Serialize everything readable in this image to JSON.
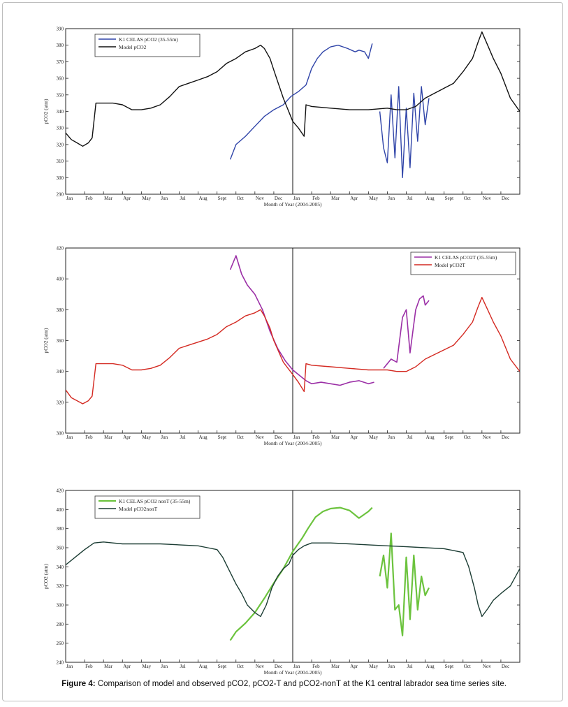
{
  "caption": {
    "label": "Figure 4:",
    "text": "Comparison of model and observed pCO2, pCO2-T and pCO2-nonT at the K1 central labrador sea time series site."
  },
  "chart_data": [
    {
      "type": "line",
      "xlabel": "Month of Year (2004-2005)",
      "ylabel": "pCO2 (atm)",
      "ylim": [
        290,
        390
      ],
      "yticks": [
        290,
        300,
        310,
        320,
        330,
        340,
        350,
        360,
        370,
        380,
        390
      ],
      "xticks": [
        "Jan",
        "Feb",
        "Mar",
        "Apr",
        "May",
        "Jun",
        "Jul",
        "Aug",
        "Sept",
        "Oct",
        "Nov",
        "Dec",
        "Jan",
        "Feb",
        "Mar",
        "Apr",
        "May",
        "Jun",
        "Jul",
        "Aug",
        "Sept",
        "Oct",
        "Nov",
        "Dec"
      ],
      "x_unit": "months since Jan 2004",
      "divider_x": 12,
      "legend_position": "top-left",
      "series": [
        {
          "name": "K1 CELAS pCO2 (35-55m)",
          "color": "#2f44a8",
          "width": 1.4,
          "x": [
            8.7,
            9.0,
            9.5,
            10.0,
            10.5,
            11.0,
            11.5,
            11.9,
            12.3,
            12.7,
            13.0,
            13.3,
            13.6,
            14.0,
            14.4,
            14.9,
            15.3,
            15.5,
            15.8,
            16.0,
            16.2
          ],
          "y": [
            311,
            320,
            325,
            331,
            337,
            341,
            344,
            349,
            352,
            356,
            366,
            372,
            376,
            379,
            380,
            378,
            376,
            377,
            376,
            372,
            381
          ]
        },
        {
          "name": "",
          "color": "#2f44a8",
          "width": 1.4,
          "x": [
            16.6,
            16.8,
            17.0,
            17.2,
            17.4,
            17.6,
            17.8,
            18.0,
            18.2,
            18.4,
            18.6,
            18.8,
            19.0,
            19.2
          ],
          "y": [
            340,
            318,
            309,
            350,
            312,
            355,
            300,
            342,
            306,
            351,
            322,
            355,
            332,
            348
          ]
        },
        {
          "name": "Model pCO2",
          "color": "#111111",
          "width": 1.4,
          "x": [
            0,
            0.3,
            0.6,
            0.9,
            1.2,
            1.4,
            1.6,
            2.0,
            2.5,
            3.0,
            3.5,
            4.0,
            4.5,
            5.0,
            5.5,
            6.0,
            6.5,
            7.0,
            7.5,
            8.0,
            8.5,
            9.0,
            9.5,
            10.0,
            10.3,
            10.5,
            10.8,
            11.0,
            11.5,
            12.0,
            12.3,
            12.6,
            12.7,
            13.0,
            14.0,
            15.0,
            16.0,
            17.0,
            17.5,
            18.0,
            18.5,
            19.0,
            19.5,
            20.0,
            20.5,
            21.0,
            21.5,
            21.8,
            22.0,
            22.3,
            22.6,
            23.0,
            23.5,
            24.0
          ],
          "y": [
            327,
            323,
            321,
            319,
            321,
            324,
            345,
            345,
            345,
            344,
            341,
            341,
            342,
            344,
            349,
            355,
            357,
            359,
            361,
            364,
            369,
            372,
            376,
            378,
            380,
            378,
            372,
            365,
            348,
            334,
            330,
            325,
            344,
            343,
            342,
            341,
            341,
            342,
            341,
            341,
            343,
            348,
            351,
            354,
            357,
            364,
            372,
            382,
            388,
            380,
            372,
            363,
            348,
            340
          ]
        }
      ]
    },
    {
      "type": "line",
      "xlabel": "Month of Year (2004-2005)",
      "ylabel": "pCO2 (atm)",
      "ylim": [
        300,
        420
      ],
      "yticks": [
        300,
        320,
        340,
        360,
        380,
        400,
        420
      ],
      "xticks": [
        "Jan",
        "Feb",
        "Mar",
        "Apr",
        "May",
        "Jun",
        "Jul",
        "Aug",
        "Sept",
        "Oct",
        "Nov",
        "Dec",
        "Jan",
        "Feb",
        "Mar",
        "Apr",
        "May",
        "Jun",
        "Jul",
        "Aug",
        "Sept",
        "Oct",
        "Nov",
        "Dec"
      ],
      "x_unit": "months since Jan 2004",
      "divider_x": 12,
      "legend_position": "top-right",
      "series": [
        {
          "name": "K1 CELAS pCO2T (35-55m)",
          "color": "#9b2fa6",
          "width": 1.6,
          "x": [
            8.7,
            9.0,
            9.3,
            9.6,
            10.0,
            10.4,
            10.8,
            11.2,
            11.6,
            12.0,
            12.4,
            12.7,
            13.0,
            13.5,
            14.0,
            14.5,
            15.0,
            15.5,
            16.0,
            16.3
          ],
          "y": [
            406,
            415,
            403,
            396,
            390,
            380,
            366,
            355,
            347,
            341,
            337,
            334,
            332,
            333,
            332,
            331,
            333,
            334,
            332,
            333
          ]
        },
        {
          "name": "",
          "color": "#9b2fa6",
          "width": 1.6,
          "x": [
            16.8,
            17.2,
            17.5,
            17.8,
            18.0,
            18.2,
            18.5,
            18.7,
            18.9,
            19.0,
            19.2
          ],
          "y": [
            342,
            348,
            346,
            375,
            380,
            352,
            380,
            387,
            389,
            383,
            386
          ]
        },
        {
          "name": "Model pCO2T",
          "color": "#d42a22",
          "width": 1.4,
          "x": [
            0,
            0.3,
            0.6,
            0.9,
            1.2,
            1.4,
            1.6,
            2.0,
            2.5,
            3.0,
            3.5,
            4.0,
            4.5,
            5.0,
            5.5,
            6.0,
            6.5,
            7.0,
            7.5,
            8.0,
            8.5,
            9.0,
            9.5,
            10.0,
            10.3,
            10.5,
            10.8,
            11.0,
            11.5,
            12.0,
            12.3,
            12.6,
            12.7,
            13.0,
            14.0,
            15.0,
            16.0,
            17.0,
            17.5,
            18.0,
            18.5,
            19.0,
            19.5,
            20.0,
            20.5,
            21.0,
            21.5,
            21.8,
            22.0,
            22.3,
            22.6,
            23.0,
            23.5,
            24.0
          ],
          "y": [
            328,
            323,
            321,
            319,
            321,
            324,
            345,
            345,
            345,
            344,
            341,
            341,
            342,
            344,
            349,
            355,
            357,
            359,
            361,
            364,
            369,
            372,
            376,
            378,
            380,
            376,
            368,
            360,
            346,
            338,
            333,
            327,
            345,
            344,
            343,
            342,
            341,
            341,
            340,
            340,
            343,
            348,
            351,
            354,
            357,
            364,
            372,
            382,
            388,
            380,
            372,
            363,
            348,
            340
          ]
        }
      ]
    },
    {
      "type": "line",
      "xlabel": "Month of Year (2004-2005)",
      "ylabel": "pCO2 (atm)",
      "ylim": [
        240,
        420
      ],
      "yticks": [
        240,
        260,
        280,
        300,
        320,
        340,
        360,
        380,
        400,
        420
      ],
      "xticks": [
        "Jan",
        "Feb",
        "Mar",
        "Apr",
        "May",
        "Jun",
        "Jul",
        "Aug",
        "Sept",
        "Oct",
        "Nov",
        "Dec",
        "Jan",
        "Feb",
        "Mar",
        "Apr",
        "May",
        "Jun",
        "Jul",
        "Aug",
        "Sept",
        "Oct",
        "Nov",
        "Dec"
      ],
      "x_unit": "months since Jan 2004",
      "divider_x": 12,
      "legend_position": "top-left",
      "series": [
        {
          "name": "K1 CELAS pCO2 nonT (35-55m)",
          "color": "#6cc33e",
          "width": 2.2,
          "x": [
            8.7,
            9.0,
            9.5,
            10.0,
            10.5,
            11.0,
            11.5,
            12.0,
            12.5,
            12.8,
            13.2,
            13.6,
            14.0,
            14.5,
            15.0,
            15.5,
            16.0,
            16.2
          ],
          "y": [
            263,
            272,
            281,
            292,
            307,
            323,
            338,
            356,
            370,
            380,
            392,
            398,
            401,
            402,
            399,
            391,
            398,
            402
          ]
        },
        {
          "name": "",
          "color": "#6cc33e",
          "width": 2.2,
          "x": [
            16.6,
            16.8,
            17.0,
            17.2,
            17.4,
            17.6,
            17.8,
            18.0,
            18.2,
            18.4,
            18.6,
            18.8,
            19.0,
            19.2
          ],
          "y": [
            330,
            352,
            318,
            375,
            295,
            300,
            268,
            350,
            285,
            352,
            295,
            330,
            310,
            318
          ]
        },
        {
          "name": "Model pCO2nonT",
          "color": "#1c3d34",
          "width": 1.4,
          "x": [
            0,
            0.5,
            1.0,
            1.5,
            2.0,
            2.5,
            3.0,
            4.0,
            5.0,
            6.0,
            7.0,
            7.5,
            8.0,
            8.3,
            8.6,
            9.0,
            9.3,
            9.6,
            10.0,
            10.3,
            10.6,
            10.9,
            11.2,
            11.5,
            11.8,
            12.0,
            12.3,
            12.6,
            13.0,
            14.0,
            15.0,
            16.0,
            17.0,
            18.0,
            19.0,
            20.0,
            20.5,
            21.0,
            21.3,
            21.6,
            21.8,
            22.0,
            22.3,
            22.6,
            23.0,
            23.5,
            24.0
          ],
          "y": [
            342,
            350,
            358,
            365,
            366,
            365,
            364,
            364,
            364,
            363,
            362,
            360,
            358,
            350,
            338,
            322,
            312,
            300,
            292,
            288,
            300,
            318,
            330,
            338,
            343,
            352,
            358,
            362,
            365,
            365,
            364,
            363,
            362,
            361,
            360,
            359,
            357,
            355,
            340,
            318,
            300,
            288,
            296,
            305,
            312,
            320,
            338
          ]
        }
      ]
    }
  ]
}
